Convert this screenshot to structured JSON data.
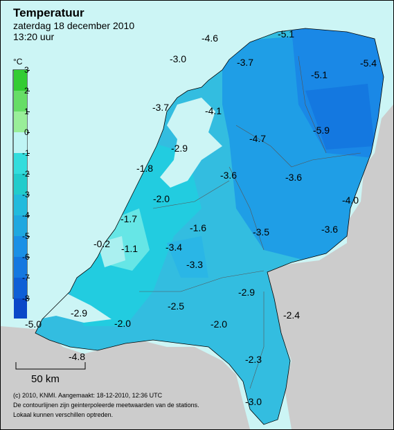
{
  "header": {
    "title": "Temperatuur",
    "date": "zaterdag 18 december 2010",
    "time": "13:20 uur"
  },
  "legend": {
    "unit": "°C",
    "ticks": [
      "3",
      "2",
      "1",
      "0",
      "-1",
      "-2",
      "-3",
      "-4",
      "-5",
      "-6",
      "-7",
      "-8"
    ],
    "colors": [
      "#33cc33",
      "#66dd66",
      "#99ee99",
      "#bff4f4",
      "#33dddd",
      "#22cccc",
      "#22bbdd",
      "#1fa8e0",
      "#1a90e6",
      "#1478e0",
      "#0e5fd6",
      "#0a48c8"
    ]
  },
  "scale": {
    "label": "50 km"
  },
  "credits": [
    "(c) 2010, KNMI. Aangemaakt: 18-12-2010, 12:36 UTC",
    "De contourlijnen zijn geinterpoleerde meetwaarden van de stations.",
    "Lokaal kunnen verschillen optreden."
  ],
  "stations": [
    {
      "value": "-4.6"
    },
    {
      "value": "-5.1"
    },
    {
      "value": "-3.0"
    },
    {
      "value": "-3.7"
    },
    {
      "value": "-5.4"
    },
    {
      "value": "-5.1"
    },
    {
      "value": "-3.7"
    },
    {
      "value": "-4.1"
    },
    {
      "value": "-5.9"
    },
    {
      "value": "-4.7"
    },
    {
      "value": "-2.9"
    },
    {
      "value": "-1.8"
    },
    {
      "value": "-3.6"
    },
    {
      "value": "-3.6"
    },
    {
      "value": "-4.0"
    },
    {
      "value": "-2.0"
    },
    {
      "value": "-1.7"
    },
    {
      "value": "-1.6"
    },
    {
      "value": "-3.5"
    },
    {
      "value": "-3.6"
    },
    {
      "value": "-0.2"
    },
    {
      "value": "-1.1"
    },
    {
      "value": "-3.4"
    },
    {
      "value": "-3.3"
    },
    {
      "value": "-2.9"
    },
    {
      "value": "-2.5"
    },
    {
      "value": "-2.9"
    },
    {
      "value": "-2.4"
    },
    {
      "value": "-5.0"
    },
    {
      "value": "-2.0"
    },
    {
      "value": "-2.0"
    },
    {
      "value": "-4.8"
    },
    {
      "value": "-2.3"
    },
    {
      "value": "-3.0"
    }
  ],
  "colors": {
    "sea": "#ccf5f5",
    "land_outside": "#cccccc",
    "contour": "#000000"
  }
}
